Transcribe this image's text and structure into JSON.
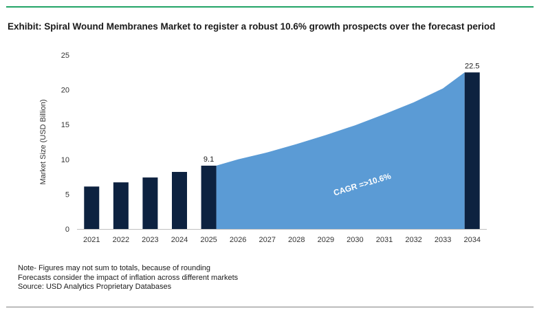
{
  "title": "Exhibit: Spiral Wound Membranes Market to register a robust 10.6% growth prospects over the forecast period",
  "notes": [
    "Note- Figures may not sum to totals, because of rounding",
    "Forecasts consider the impact of inflation across different markets",
    "Source: USD Analytics Proprietary Databases"
  ],
  "colors": {
    "bar": "#0d2240",
    "area": "#5b9bd5",
    "rule_top": "#21a366",
    "rule_bottom": "#7f7f7f"
  },
  "chart_data": {
    "type": "bar",
    "title": "Exhibit: Spiral Wound Membranes Market to register a robust 10.6% growth prospects over the forecast period",
    "ylabel": "Market Size (USD Billion)",
    "xlabel": "",
    "ylim": [
      0,
      25
    ],
    "yticks": [
      0,
      5,
      10,
      15,
      20,
      25
    ],
    "categories": [
      "2021",
      "2022",
      "2023",
      "2024",
      "2025",
      "2026",
      "2027",
      "2028",
      "2029",
      "2030",
      "2031",
      "2032",
      "2033",
      "2034"
    ],
    "series": [
      {
        "type": "bar",
        "values": [
          6.1,
          6.7,
          7.4,
          8.2,
          9.1,
          null,
          null,
          null,
          null,
          null,
          null,
          null,
          null,
          22.5
        ],
        "data_labels": {
          "2025": "9.1",
          "2034": "22.5"
        }
      },
      {
        "type": "area",
        "values": [
          null,
          null,
          null,
          null,
          9.1,
          10.0,
          11.0,
          12.2,
          13.5,
          14.9,
          16.5,
          18.2,
          20.2,
          22.5
        ]
      }
    ],
    "annotation": "CAGR =>10.6%",
    "grid": false,
    "legend": "none"
  }
}
